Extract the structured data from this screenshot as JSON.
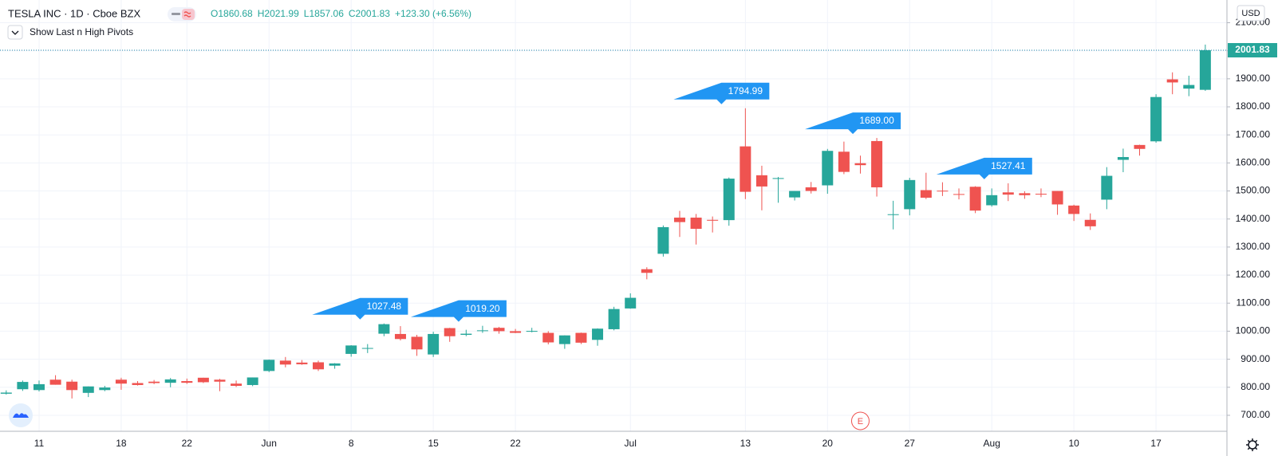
{
  "chart_data": {
    "type": "candlestick",
    "title": "TESLA INC · 1D · Cboe BZX",
    "ohlc_prefixes": [
      "O",
      "H",
      "L",
      "C"
    ],
    "change": "+123.30 (+6.56%)",
    "indicator": "Show Last n High Pivots",
    "currency": "USD",
    "earnings_label": "E",
    "up_color": "#26a69a",
    "down_color": "#ef5350",
    "pivot_color": "#2196f3",
    "grid": true,
    "categories": [
      null,
      null,
      "11",
      null,
      null,
      null,
      null,
      "18",
      null,
      null,
      null,
      "22",
      null,
      null,
      null,
      null,
      "Jun",
      null,
      null,
      null,
      null,
      "8",
      null,
      null,
      null,
      null,
      "15",
      null,
      null,
      null,
      null,
      "22",
      null,
      null,
      null,
      null,
      null,
      null,
      "Jul",
      null,
      null,
      null,
      null,
      null,
      null,
      "13",
      null,
      null,
      null,
      null,
      "20",
      null,
      null,
      null,
      null,
      "27",
      null,
      null,
      null,
      null,
      "Aug",
      null,
      null,
      null,
      null,
      "10",
      null,
      null,
      null,
      null,
      "17",
      null,
      null,
      null
    ],
    "open": [
      777,
      793,
      790,
      827,
      820,
      780,
      790,
      827,
      815,
      820,
      816,
      822,
      834,
      827,
      813,
      808,
      858,
      895,
      888,
      889,
      877,
      919,
      940,
      991,
      990,
      980,
      917,
      1011,
      987,
      1003,
      1012,
      1000,
      998,
      994,
      954,
      994,
      969,
      1007,
      1081,
      1221,
      1276,
      1405,
      1405,
      1397,
      1396,
      1659,
      1556,
      1543,
      1477,
      1513,
      1520,
      1640,
      1599,
      1678,
      1416,
      1435,
      1503,
      1501,
      1489,
      1515,
      1449,
      1495,
      1492,
      1490,
      1500,
      1448,
      1397,
      1469,
      1611,
      1664,
      1677,
      1898,
      1865,
      1860.68
    ],
    "high": [
      789,
      824,
      824,
      843,
      827,
      803,
      805,
      834,
      822,
      826,
      833,
      831,
      834,
      830,
      824,
      835,
      899,
      908,
      897,
      895,
      886,
      950,
      954,
      1027.48,
      1018,
      987,
      998,
      1012,
      1005,
      1019.2,
      1015,
      1008,
      1012,
      1000,
      985,
      995,
      1010,
      1087,
      1135,
      1228,
      1377,
      1429,
      1418,
      1409,
      1548,
      1794.99,
      1590,
      1550,
      1500,
      1532,
      1650,
      1676,
      1626,
      1689,
      1465,
      1547,
      1565,
      1531,
      1509,
      1517,
      1509,
      1527.41,
      1499,
      1509,
      1500,
      1451,
      1420,
      1585,
      1651,
      1665,
      1845,
      1923,
      1911,
      2021.99
    ],
    "low": [
      774,
      787,
      785,
      809,
      760,
      765,
      786,
      791,
      806,
      811,
      800,
      812,
      815,
      786,
      801,
      804,
      854,
      871,
      880,
      858,
      866,
      909,
      922,
      982,
      967,
      912,
      908,
      962,
      982,
      994,
      991,
      993,
      996,
      953,
      937,
      954,
      948,
      1003,
      1080,
      1185,
      1266,
      1336,
      1309,
      1352,
      1376,
      1471,
      1431,
      1458,
      1466,
      1491,
      1490,
      1560,
      1562,
      1480,
      1363,
      1413,
      1471,
      1482,
      1470,
      1421,
      1444,
      1464,
      1472,
      1478,
      1415,
      1393,
      1361,
      1435,
      1567,
      1626,
      1672,
      1845,
      1838,
      1857.06
    ],
    "close": [
      781,
      819,
      811,
      809,
      790,
      803,
      799,
      813,
      808,
      815,
      828,
      816,
      818,
      820,
      805,
      835,
      898,
      881,
      882,
      864,
      885,
      949,
      940,
      1025,
      972,
      935,
      990,
      982,
      991,
      1003,
      1000,
      994,
      1001,
      960,
      985,
      959,
      1009,
      1079,
      1119,
      1208,
      1371,
      1389,
      1365,
      1394,
      1544,
      1497,
      1516,
      1546,
      1500,
      1500,
      1643,
      1568,
      1592,
      1513,
      1417,
      1539,
      1476,
      1500,
      1487,
      1430,
      1485,
      1487,
      1485,
      1489,
      1452,
      1418,
      1374,
      1554,
      1621,
      1650,
      1835,
      1887,
      1878,
      2001.83
    ],
    "high_labels": [
      null,
      null,
      null,
      null,
      null,
      null,
      null,
      null,
      null,
      null,
      null,
      null,
      null,
      null,
      null,
      null,
      null,
      null,
      null,
      null,
      null,
      null,
      null,
      "1027.48",
      null,
      null,
      null,
      null,
      null,
      "1019.20",
      null,
      null,
      null,
      null,
      null,
      null,
      null,
      null,
      null,
      null,
      null,
      null,
      null,
      null,
      null,
      "1794.99",
      null,
      null,
      null,
      null,
      null,
      null,
      null,
      "1689.00",
      null,
      null,
      null,
      null,
      null,
      null,
      null,
      "1527.41",
      null,
      null,
      null,
      null,
      null,
      null,
      null,
      null,
      null,
      null,
      null,
      null
    ],
    "ylim": [
      643,
      2181
    ],
    "yticks": [
      {
        "value": 700,
        "label": "700.00"
      },
      {
        "value": 800,
        "label": "800.00"
      },
      {
        "value": 900,
        "label": "900.00"
      },
      {
        "value": 1000,
        "label": "1000.00"
      },
      {
        "value": 1100,
        "label": "1100.00"
      },
      {
        "value": 1200,
        "label": "1200.00"
      },
      {
        "value": 1300,
        "label": "1300.00"
      },
      {
        "value": 1400,
        "label": "1400.00"
      },
      {
        "value": 1500,
        "label": "1500.00"
      },
      {
        "value": 1600,
        "label": "1600.00"
      },
      {
        "value": 1700,
        "label": "1700.00"
      },
      {
        "value": 1800,
        "label": "1800.00"
      },
      {
        "value": 1900,
        "label": "1900.00"
      },
      {
        "value": 2000,
        "label": "2000.00"
      },
      {
        "value": 2100,
        "label": "2100.00"
      }
    ]
  }
}
